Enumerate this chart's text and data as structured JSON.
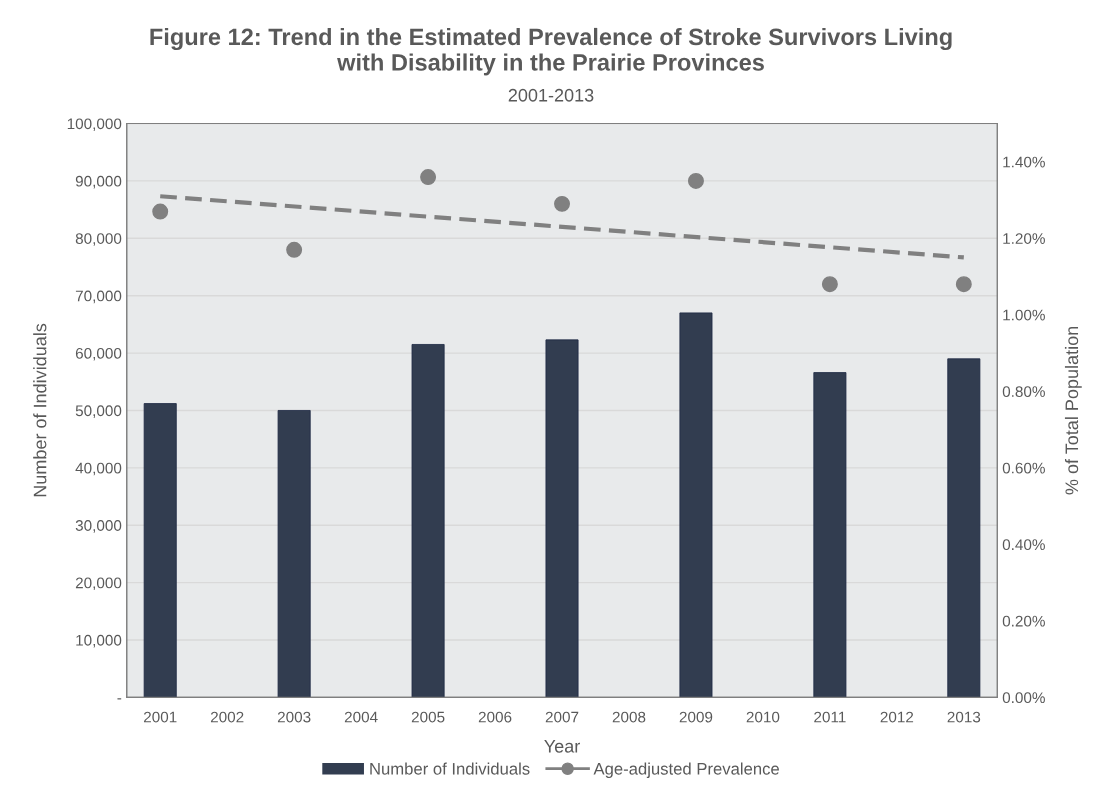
{
  "chart_data": {
    "type": "bar",
    "title": "Figure 12: Trend in the Estimated Prevalence of Stroke Survivors Living\nwith Disability in the Prairie Provinces",
    "subtitle": "2001-2013",
    "xlabel": "Year",
    "ylabel": "Number of Individuals",
    "y2label": "% of Total Population",
    "x": [
      2001,
      2002,
      2003,
      2004,
      2005,
      2006,
      2007,
      2008,
      2009,
      2010,
      2011,
      2012,
      2013
    ],
    "xlim": [
      2000.5,
      2013.5
    ],
    "xticks": [
      2001,
      2002,
      2003,
      2004,
      2005,
      2006,
      2007,
      2008,
      2009,
      2010,
      2011,
      2012,
      2013
    ],
    "series": [
      {
        "name": "Number of Individuals",
        "color": "#323d50",
        "values": [
          51200,
          null,
          50000,
          null,
          61500,
          null,
          62300,
          null,
          67000,
          null,
          56600,
          null,
          59000
        ]
      },
      {
        "name": "Age-adjusted Prevalence",
        "type": "scatter",
        "axis": "y2",
        "color": "#808080",
        "marker": "circle",
        "values": [
          1.27,
          null,
          1.17,
          null,
          1.36,
          null,
          1.29,
          null,
          1.35,
          null,
          1.08,
          null,
          1.08
        ]
      },
      {
        "type": "line",
        "axis": "y2",
        "color": "#808080",
        "line_style": "dashed",
        "x": [
          2001,
          2013
        ],
        "values": [
          1.31,
          1.15
        ]
      }
    ],
    "ylim": [
      0,
      100000
    ],
    "yticks": [
      {
        "value": 0,
        "label": "-"
      },
      {
        "value": 10000,
        "label": "10,000"
      },
      {
        "value": 20000,
        "label": "20,000"
      },
      {
        "value": 30000,
        "label": "30,000"
      },
      {
        "value": 40000,
        "label": "40,000"
      },
      {
        "value": 50000,
        "label": "50,000"
      },
      {
        "value": 60000,
        "label": "60,000"
      },
      {
        "value": 70000,
        "label": "70,000"
      },
      {
        "value": 80000,
        "label": "80,000"
      },
      {
        "value": 90000,
        "label": "90,000"
      },
      {
        "value": 100000,
        "label": "100,000"
      }
    ],
    "y2lim": [
      0,
      1.5
    ],
    "y2ticks": [
      {
        "value": 0,
        "label": "0.00%"
      },
      {
        "value": 0.2,
        "label": "0.20%"
      },
      {
        "value": 0.4,
        "label": "0.40%"
      },
      {
        "value": 0.6,
        "label": "0.60%"
      },
      {
        "value": 0.8,
        "label": "0.80%"
      },
      {
        "value": 1.0,
        "label": "1.00%"
      },
      {
        "value": 1.2,
        "label": "1.20%"
      },
      {
        "value": 1.4,
        "label": "1.40%"
      }
    ],
    "grid": "y",
    "legend": "bottom"
  }
}
